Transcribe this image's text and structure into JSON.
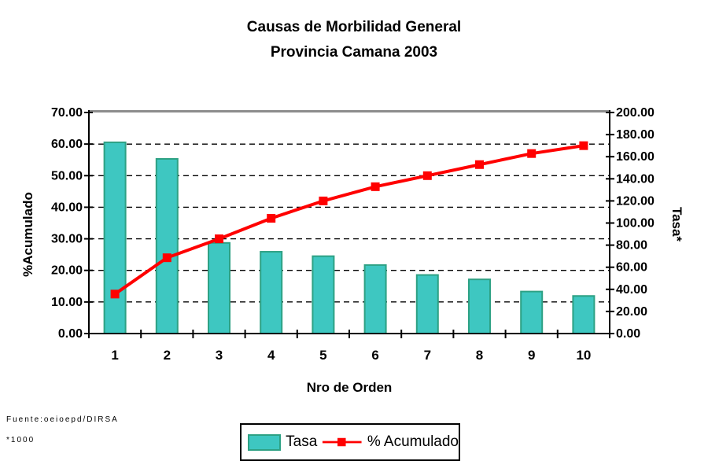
{
  "title": {
    "line1": "Causas de Morbilidad General",
    "line2": "Provincia Camana 2003"
  },
  "axis_titles": {
    "left": "%Acumulado",
    "right": "Tasa*",
    "x": "Nro de Orden"
  },
  "footer": {
    "source": "Fuente:oeioepd/DIRSA",
    "note": "*1000"
  },
  "legend": {
    "items": [
      {
        "label": "Tasa",
        "swatch": "bar"
      },
      {
        "label": "% Acumulado",
        "swatch": "line-marker"
      }
    ]
  },
  "colors": {
    "bar_fill": "#3EC7C1",
    "bar_stroke": "#2EA184",
    "line": "#FF0000",
    "grid": "#000000",
    "axis": "#000000",
    "plot_top_border": "#8C8C8C",
    "text": "#000000",
    "background": "#FFFFFF"
  },
  "chart_data": {
    "type": "bar+line (pareto combo)",
    "title": "Causas de Morbilidad General",
    "subtitle": "Provincia Camana 2003",
    "xlabel": "Nro de Orden",
    "categories": [
      "1",
      "2",
      "3",
      "4",
      "5",
      "6",
      "7",
      "8",
      "9",
      "10"
    ],
    "series": [
      {
        "name": "Tasa",
        "type": "bar",
        "axis": "right",
        "values": [
          173,
          158,
          82,
          74,
          70,
          62,
          53,
          49,
          38,
          34
        ]
      },
      {
        "name": "% Acumulado",
        "type": "line",
        "axis": "left",
        "values": [
          12.5,
          24,
          30,
          36.5,
          42,
          46.5,
          50,
          53.5,
          57,
          59.5
        ]
      }
    ],
    "left_axis": {
      "label": "%Acumulado",
      "min": 0,
      "max": 70,
      "step": 10,
      "tick_format": "0.00"
    },
    "right_axis": {
      "label": "Tasa*",
      "min": 0,
      "max": 200,
      "step": 20,
      "tick_format": "0.00"
    },
    "grid": {
      "horizontal": "dashed",
      "vertical": false
    },
    "legend_position": "bottom"
  }
}
